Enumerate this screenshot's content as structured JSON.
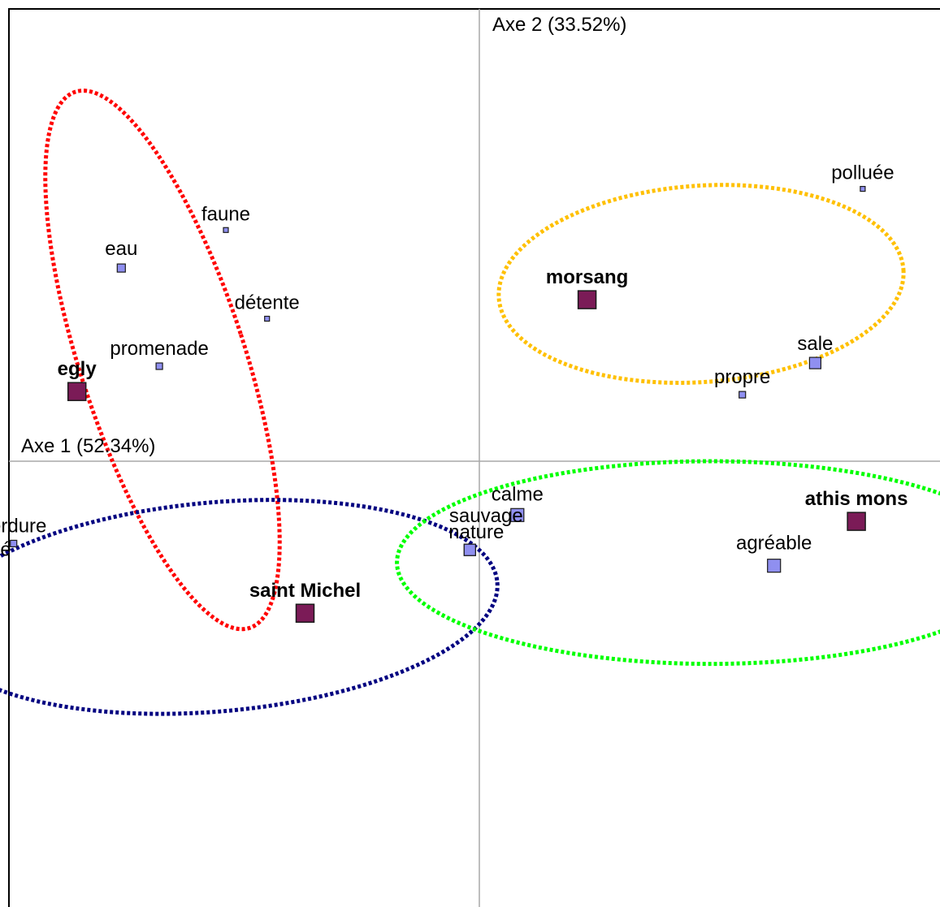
{
  "chart_data": {
    "type": "scatter",
    "title": "",
    "xlabel": "Axe 1 (52.34%)",
    "ylabel": "Axe 2 (33.52%)",
    "xlim": [
      -1.0,
      1.0
    ],
    "ylim": [
      -1.0,
      1.0
    ],
    "grid": false,
    "colors": {
      "site_fill": "#7b1b57",
      "word_fill": "#8f8ff0",
      "marker_stroke": "#1a1a1a",
      "axis_line": "#a8a8a8",
      "frame": "#000000",
      "ellipse_red": "#ff0000",
      "ellipse_yellow": "#ffc000",
      "ellipse_blue": "#000080",
      "ellipse_green": "#00ff00"
    },
    "sites": [
      {
        "label": "morsang",
        "x": 0.34,
        "y": 0.51
      },
      {
        "label": "egly",
        "x": -1.27,
        "y": 0.22
      },
      {
        "label": "athis mons",
        "x": 1.19,
        "y": -0.19
      },
      {
        "label": "saint Michel",
        "x": -0.55,
        "y": -0.48
      }
    ],
    "words": [
      {
        "label": "polluée",
        "x": 1.21,
        "y": 0.86,
        "size": 6,
        "label_anchor": "middle",
        "label_dx": 0,
        "label_dy": -12
      },
      {
        "label": "faune",
        "x": -0.8,
        "y": 0.73,
        "size": 6,
        "label_anchor": "middle",
        "label_dx": 0,
        "label_dy": -12
      },
      {
        "label": "eau",
        "x": -1.13,
        "y": 0.61,
        "size": 10,
        "label_anchor": "middle",
        "label_dx": 0,
        "label_dy": -16
      },
      {
        "label": "détente",
        "x": -0.67,
        "y": 0.45,
        "size": 6,
        "label_anchor": "middle",
        "label_dx": 0,
        "label_dy": -12
      },
      {
        "label": "promenade",
        "x": -1.01,
        "y": 0.3,
        "size": 8,
        "label_anchor": "middle",
        "label_dx": 0,
        "label_dy": -14
      },
      {
        "label": "sale",
        "x": 1.06,
        "y": 0.31,
        "size": 14,
        "label_anchor": "middle",
        "label_dx": 0,
        "label_dy": -16
      },
      {
        "label": "propre",
        "x": 0.83,
        "y": 0.21,
        "size": 8,
        "label_anchor": "middle",
        "label_dx": 0,
        "label_dy": -14
      },
      {
        "label": "calme",
        "x": 0.12,
        "y": -0.17,
        "size": 16,
        "label_anchor": "middle",
        "label_dx": 0,
        "label_dy": -18
      },
      {
        "label": "sauvage",
        "x": -0.03,
        "y": -0.28,
        "size": 14,
        "label_anchor": "middle",
        "label_dx": 20,
        "label_dy": -34
      },
      {
        "label": "nature",
        "x": -0.03,
        "y": -0.28,
        "size": 14,
        "label_anchor": "middle",
        "label_dx": 8,
        "label_dy": -14
      },
      {
        "label": "agréable",
        "x": 0.93,
        "y": -0.33,
        "size": 16,
        "label_anchor": "middle",
        "label_dx": 0,
        "label_dy": -20
      },
      {
        "label": "verdure",
        "x": -1.47,
        "y": -0.26,
        "size": 8,
        "label_anchor": "middle",
        "label_dx": 0,
        "label_dy": -14
      },
      {
        "label": "tranquilité",
        "x": -1.57,
        "y": -0.34,
        "size": 10,
        "label_anchor": "middle",
        "label_dx": -16,
        "label_dy": -16
      }
    ],
    "ellipses": [
      {
        "name": "red-ellipse",
        "color_key": "ellipse_red",
        "cx": -1.0,
        "cy": 0.32,
        "rx": 0.26,
        "ry": 0.89,
        "angle": -18.0
      },
      {
        "name": "yellow-ellipse",
        "color_key": "ellipse_yellow",
        "cx": 0.7,
        "cy": 0.56,
        "rx": 0.64,
        "ry": 0.31,
        "angle": -4.0
      },
      {
        "name": "blue-ellipse",
        "color_key": "ellipse_blue",
        "cx": -0.83,
        "cy": -0.46,
        "rx": 0.89,
        "ry": 0.33,
        "angle": -5.0
      },
      {
        "name": "green-ellipse",
        "color_key": "ellipse_green",
        "cx": 0.73,
        "cy": -0.32,
        "rx": 0.99,
        "ry": 0.32,
        "angle": 0.0
      }
    ]
  }
}
